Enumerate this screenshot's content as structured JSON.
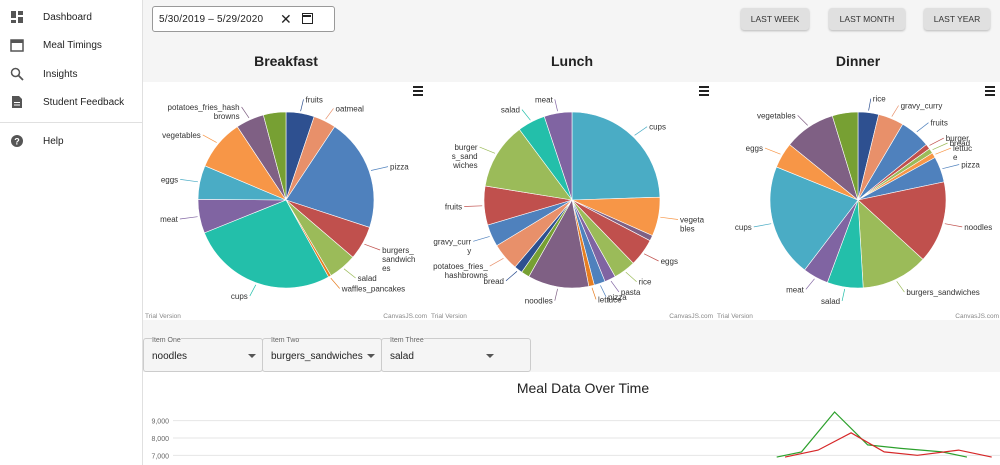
{
  "sidebar": {
    "items": [
      {
        "label": "Dashboard",
        "icon": "dashboard-icon"
      },
      {
        "label": "Meal Timings",
        "icon": "calendar-icon"
      },
      {
        "label": "Insights",
        "icon": "search-icon"
      },
      {
        "label": "Student Feedback",
        "icon": "document-icon"
      },
      {
        "label": "Help",
        "icon": "help-icon"
      }
    ]
  },
  "date_range": {
    "value": "5/30/2019  –  5/29/2020"
  },
  "range_buttons": {
    "last_week": "LAST WEEK",
    "last_month": "LAST MONTH",
    "last_year": "LAST YEAR"
  },
  "trial_text": "Trial Version",
  "credit_text": "CanvasJS.com",
  "selectors": [
    {
      "label": "Item One",
      "value": "noodles"
    },
    {
      "label": "Item Two",
      "value": "burgers_sandwiches"
    },
    {
      "label": "Item Three",
      "value": "salad"
    }
  ],
  "chart_data": [
    {
      "type": "pie",
      "title": "Breakfast",
      "slices": [
        {
          "label": "fruits",
          "value": 5,
          "color": "#2e5090"
        },
        {
          "label": "oatmeal",
          "value": 4,
          "color": "#e8906a"
        },
        {
          "label": "pizza",
          "value": 20,
          "color": "#4f81bd"
        },
        {
          "label": "burgers_ sandwich es",
          "value": 6,
          "color": "#c0504d"
        },
        {
          "label": "salad",
          "value": 5,
          "color": "#9bbb59"
        },
        {
          "label": "waffles_pancakes",
          "value": 0.5,
          "color": "#e67e22"
        },
        {
          "label": "cups",
          "value": 26,
          "color": "#23bfaa"
        },
        {
          "label": "meat",
          "value": 6,
          "color": "#8064a2"
        },
        {
          "label": "eggs",
          "value": 6,
          "color": "#4aacc5"
        },
        {
          "label": "vegetables",
          "value": 9,
          "color": "#f79647"
        },
        {
          "label": "potatoes_fries_hash browns",
          "value": 5,
          "color": "#7f6084"
        },
        {
          "label": "",
          "value": 4,
          "color": "#77a033"
        }
      ]
    },
    {
      "type": "pie",
      "title": "Lunch",
      "slices": [
        {
          "label": "cups",
          "value": 24,
          "color": "#4aacc5"
        },
        {
          "label": "vegeta bles",
          "value": 7,
          "color": "#f79647"
        },
        {
          "label": "",
          "value": 1,
          "color": "#7f6084"
        },
        {
          "label": "eggs",
          "value": 5,
          "color": "#c0504d"
        },
        {
          "label": "rice",
          "value": 4,
          "color": "#9bbb59"
        },
        {
          "label": "pasta",
          "value": 2,
          "color": "#8064a2"
        },
        {
          "label": "pizza",
          "value": 2,
          "color": "#4f81bd"
        },
        {
          "label": "lettuce",
          "value": 1,
          "color": "#e67e22"
        },
        {
          "label": "noodles",
          "value": 11,
          "color": "#7f6084"
        },
        {
          "label": "",
          "value": 1.5,
          "color": "#77a033"
        },
        {
          "label": "bread",
          "value": 1.5,
          "color": "#2e5090"
        },
        {
          "label": "potatoes_fries_ hashbrowns",
          "value": 5,
          "color": "#e8906a"
        },
        {
          "label": "gravy_curr y",
          "value": 4,
          "color": "#4f81bd"
        },
        {
          "label": "fruits",
          "value": 7,
          "color": "#c0504d"
        },
        {
          "label": "burger s_sand wiches",
          "value": 12,
          "color": "#9bbb59"
        },
        {
          "label": "salad",
          "value": 5,
          "color": "#23bfaa"
        },
        {
          "label": "meat",
          "value": 5,
          "color": "#8064a2"
        }
      ]
    },
    {
      "type": "pie",
      "title": "Dinner",
      "slices": [
        {
          "label": "rice",
          "value": 4,
          "color": "#2e5090"
        },
        {
          "label": "gravy_curry",
          "value": 5,
          "color": "#e8906a"
        },
        {
          "label": "fruits",
          "value": 6,
          "color": "#4f81bd"
        },
        {
          "label": "burger",
          "value": 1,
          "color": "#c0504d"
        },
        {
          "label": "bread",
          "value": 1,
          "color": "#9bbb59"
        },
        {
          "label": "lettuc e",
          "value": 1,
          "color": "#f79647"
        },
        {
          "label": "pizza",
          "value": 5,
          "color": "#4f81bd"
        },
        {
          "label": "noodles",
          "value": 16,
          "color": "#c0504d"
        },
        {
          "label": "burgers_sandwiches",
          "value": 13,
          "color": "#9bbb59"
        },
        {
          "label": "salad",
          "value": 7,
          "color": "#23bfaa"
        },
        {
          "label": "meat",
          "value": 5,
          "color": "#8064a2"
        },
        {
          "label": "cups",
          "value": 22,
          "color": "#4aacc5"
        },
        {
          "label": "eggs",
          "value": 5,
          "color": "#f79647"
        },
        {
          "label": "vegetables",
          "value": 10,
          "color": "#7f6084"
        },
        {
          "label": "",
          "value": 5,
          "color": "#77a033"
        }
      ]
    },
    {
      "type": "line",
      "title": "Meal Data Over Time",
      "yticks": [
        "9,000",
        "8,000",
        "7,000"
      ],
      "ylim": [
        6500,
        9500
      ],
      "series": [
        {
          "name": "burgers_sandwiches",
          "color": "#2ca02c",
          "points": [
            [
              0.73,
              6900
            ],
            [
              0.76,
              7200
            ],
            [
              0.8,
              9500
            ],
            [
              0.84,
              7600
            ],
            [
              0.88,
              7400
            ],
            [
              0.93,
              7200
            ],
            [
              0.96,
              6900
            ]
          ]
        },
        {
          "name": "noodles",
          "color": "#d62728",
          "points": [
            [
              0.74,
              6900
            ],
            [
              0.78,
              7300
            ],
            [
              0.82,
              8300
            ],
            [
              0.86,
              7200
            ],
            [
              0.9,
              7000
            ],
            [
              0.95,
              7300
            ],
            [
              0.99,
              6900
            ]
          ]
        }
      ]
    }
  ]
}
